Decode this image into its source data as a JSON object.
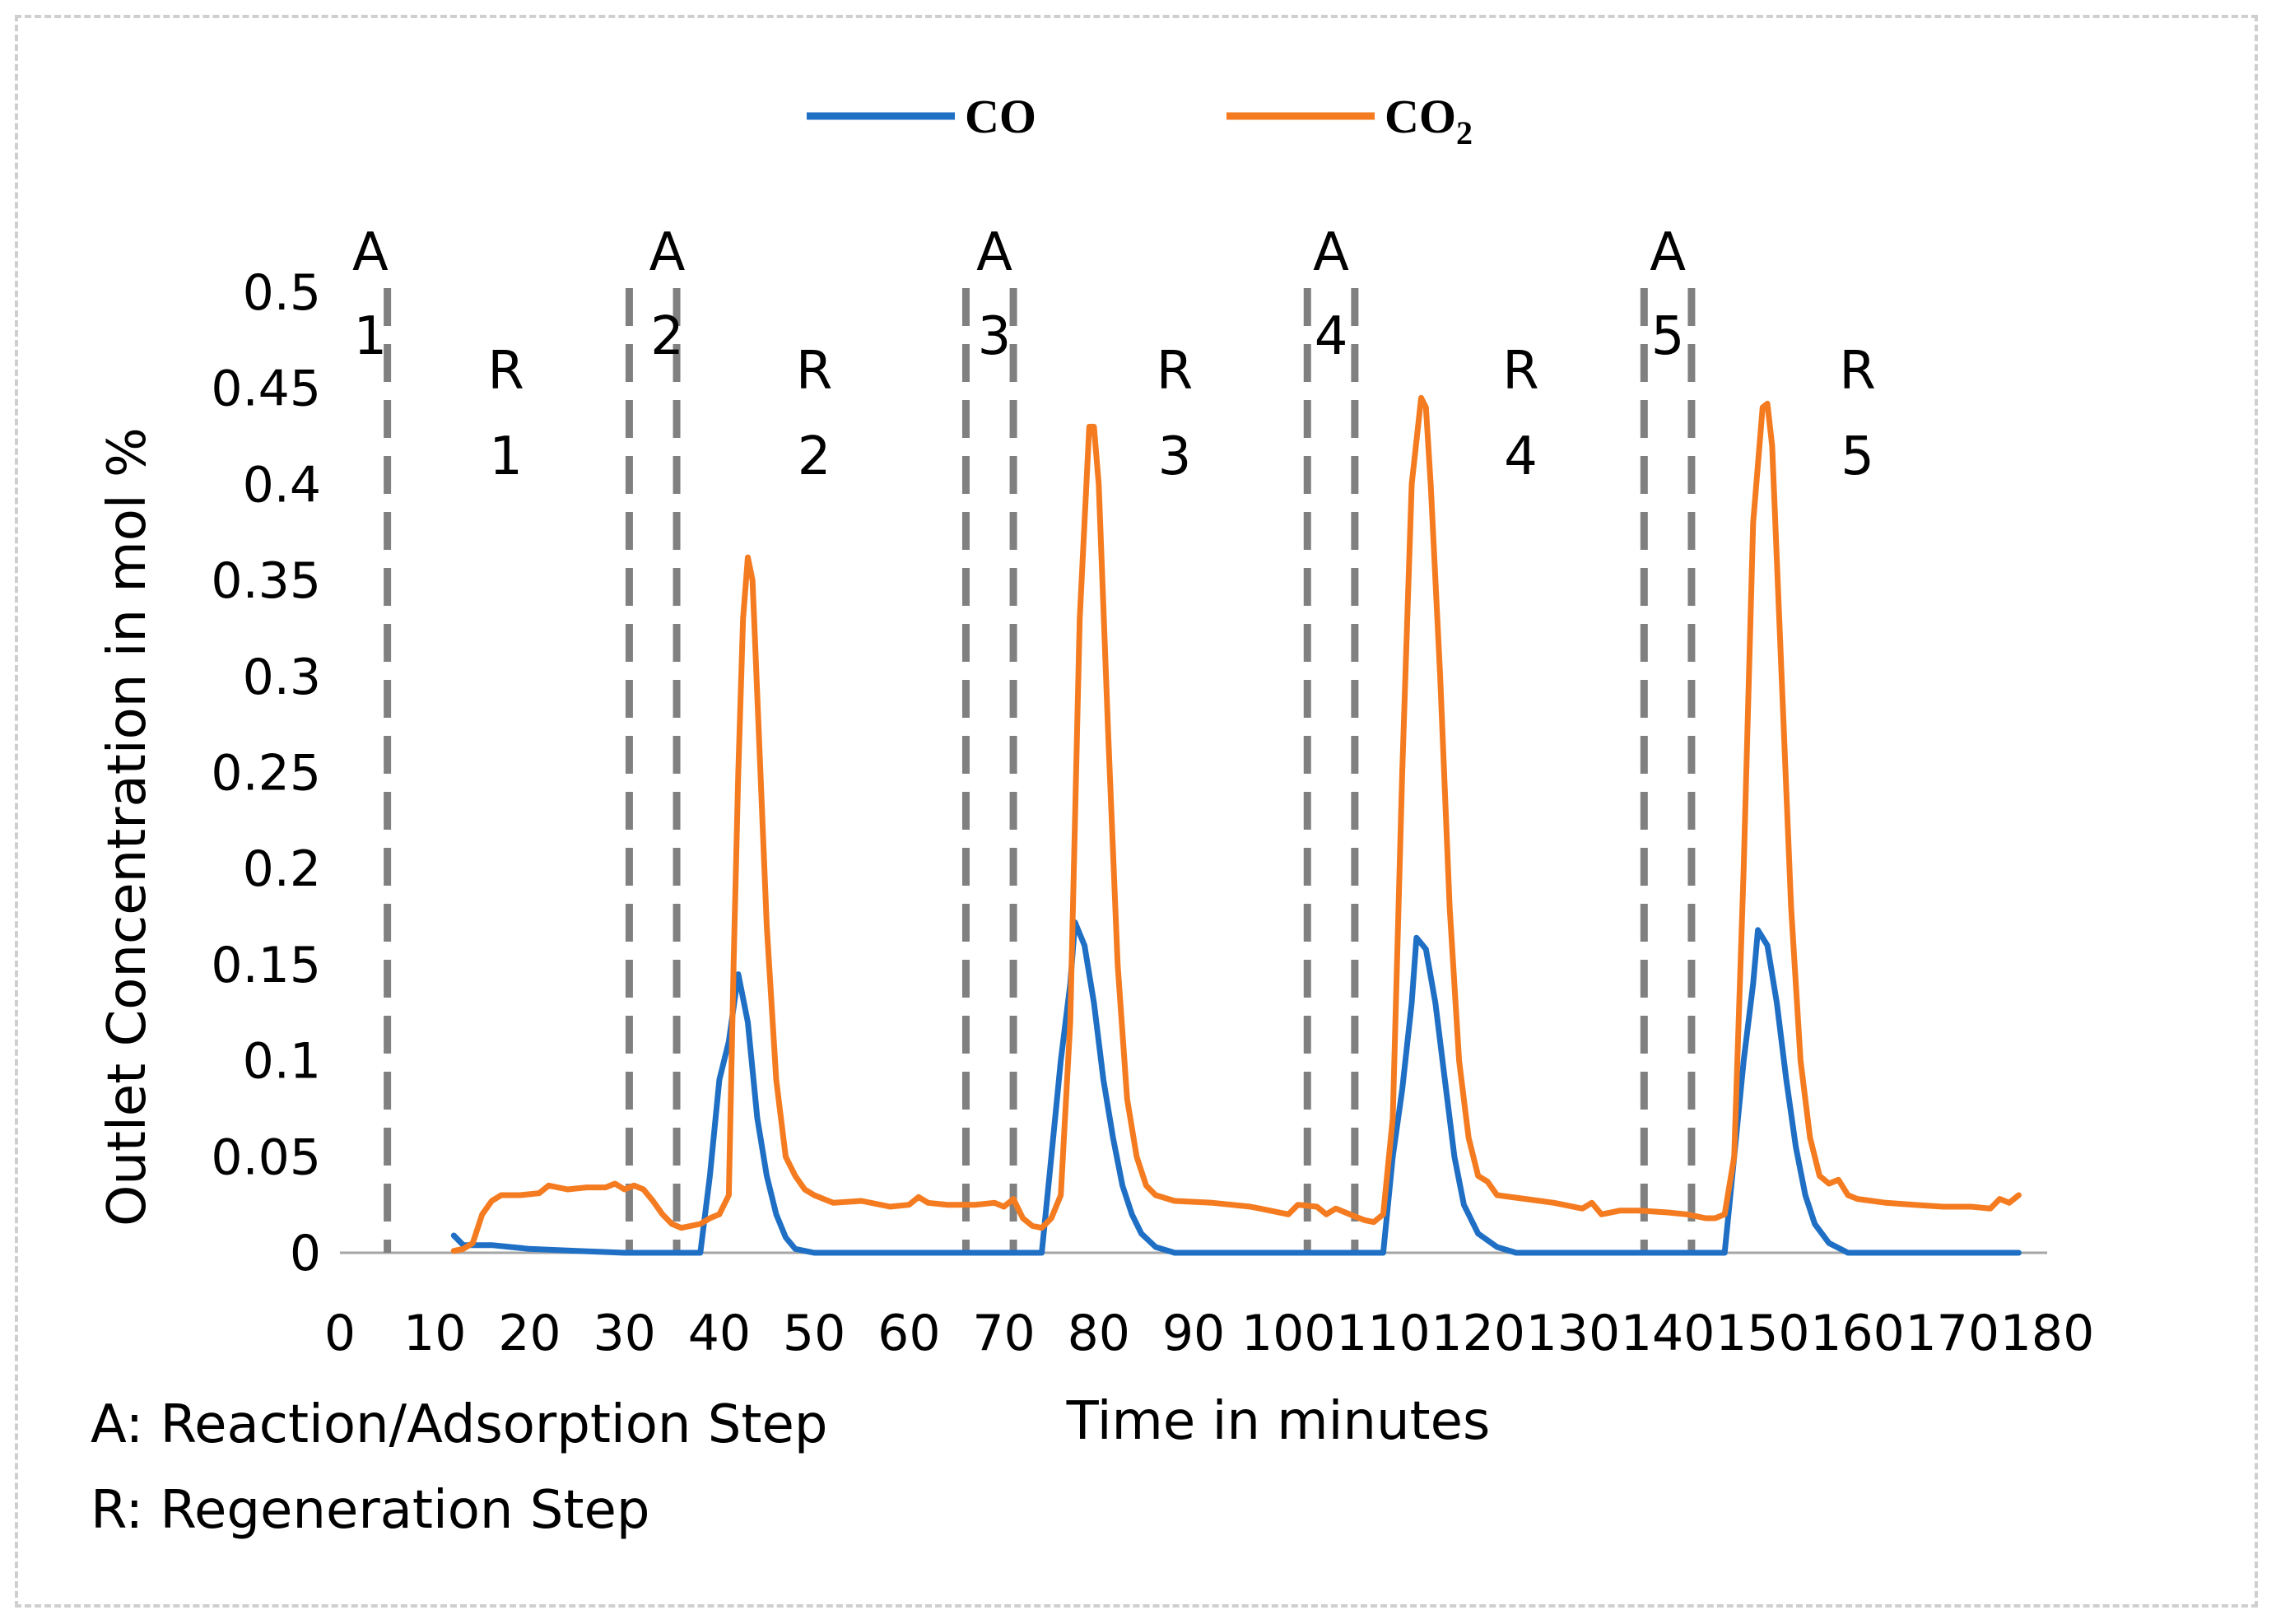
{
  "chart_data": {
    "type": "line",
    "title": "",
    "xlabel": "Time in minutes",
    "ylabel": "Outlet  Concentration in mol %",
    "xlim": [
      0,
      180
    ],
    "ylim": [
      0,
      0.5
    ],
    "x_ticks": [
      "0",
      "10",
      "20",
      "30",
      "40",
      "50",
      "60",
      "70",
      "80",
      "90",
      "100",
      "110",
      "120",
      "130",
      "140",
      "150",
      "160",
      "170",
      "180"
    ],
    "y_ticks": [
      "0",
      "0.05",
      "0.1",
      "0.15",
      "0.2",
      "0.25",
      "0.3",
      "0.35",
      "0.4",
      "0.45",
      "0.5"
    ],
    "legend": {
      "position": "top-center",
      "entries": [
        {
          "label": "CO",
          "subscript": "",
          "color": "#1f6fc5"
        },
        {
          "label": "CO",
          "subscript": "2",
          "color": "#f47b20"
        }
      ]
    },
    "series": [
      {
        "name": "CO",
        "color": "#1f6fc5",
        "points": [
          [
            12,
            0.009
          ],
          [
            13,
            0.004
          ],
          [
            14,
            0.004
          ],
          [
            16,
            0.004
          ],
          [
            18,
            0.003
          ],
          [
            20,
            0.002
          ],
          [
            25,
            0.001
          ],
          [
            30,
            0.0
          ],
          [
            37,
            0.0
          ],
          [
            38,
            0.0
          ],
          [
            39,
            0.04
          ],
          [
            40,
            0.09
          ],
          [
            41,
            0.11
          ],
          [
            42,
            0.145
          ],
          [
            43,
            0.12
          ],
          [
            44,
            0.07
          ],
          [
            45,
            0.04
          ],
          [
            46,
            0.02
          ],
          [
            47,
            0.008
          ],
          [
            48,
            0.002
          ],
          [
            50,
            0.0
          ],
          [
            73,
            0.0
          ],
          [
            74,
            0.0
          ],
          [
            75,
            0.05
          ],
          [
            76,
            0.1
          ],
          [
            77,
            0.14
          ],
          [
            77.5,
            0.172
          ],
          [
            78.5,
            0.16
          ],
          [
            79.5,
            0.13
          ],
          [
            80.5,
            0.09
          ],
          [
            81.5,
            0.06
          ],
          [
            82.5,
            0.035
          ],
          [
            83.5,
            0.02
          ],
          [
            84.5,
            0.01
          ],
          [
            86,
            0.003
          ],
          [
            88,
            0.0
          ],
          [
            109,
            0.0
          ],
          [
            110,
            0.0
          ],
          [
            111,
            0.05
          ],
          [
            112,
            0.085
          ],
          [
            113,
            0.13
          ],
          [
            113.5,
            0.164
          ],
          [
            114.5,
            0.158
          ],
          [
            115.5,
            0.13
          ],
          [
            116.5,
            0.09
          ],
          [
            117.5,
            0.05
          ],
          [
            118.5,
            0.025
          ],
          [
            120,
            0.01
          ],
          [
            122,
            0.003
          ],
          [
            124,
            0.0
          ],
          [
            145,
            0.0
          ],
          [
            146,
            0.0
          ],
          [
            147,
            0.05
          ],
          [
            148,
            0.1
          ],
          [
            149,
            0.14
          ],
          [
            149.5,
            0.168
          ],
          [
            150.5,
            0.16
          ],
          [
            151.5,
            0.13
          ],
          [
            152.5,
            0.09
          ],
          [
            153.5,
            0.055
          ],
          [
            154.5,
            0.03
          ],
          [
            155.5,
            0.015
          ],
          [
            157,
            0.005
          ],
          [
            159,
            0.0
          ],
          [
            177,
            0.0
          ]
        ]
      },
      {
        "name": "CO2",
        "color": "#f47b20",
        "points": [
          [
            12,
            0.001
          ],
          [
            13,
            0.002
          ],
          [
            14,
            0.005
          ],
          [
            15,
            0.02
          ],
          [
            16,
            0.027
          ],
          [
            17,
            0.03
          ],
          [
            19,
            0.03
          ],
          [
            21,
            0.031
          ],
          [
            22,
            0.035
          ],
          [
            24,
            0.033
          ],
          [
            26,
            0.034
          ],
          [
            28,
            0.034
          ],
          [
            29,
            0.036
          ],
          [
            30,
            0.033
          ],
          [
            31,
            0.035
          ],
          [
            32,
            0.033
          ],
          [
            33,
            0.027
          ],
          [
            34,
            0.02
          ],
          [
            35,
            0.015
          ],
          [
            36,
            0.013
          ],
          [
            38,
            0.015
          ],
          [
            39,
            0.018
          ],
          [
            40,
            0.02
          ],
          [
            41,
            0.03
          ],
          [
            41.5,
            0.15
          ],
          [
            42,
            0.25
          ],
          [
            42.5,
            0.33
          ],
          [
            43,
            0.362
          ],
          [
            43.5,
            0.35
          ],
          [
            44,
            0.29
          ],
          [
            45,
            0.17
          ],
          [
            46,
            0.09
          ],
          [
            47,
            0.05
          ],
          [
            48,
            0.04
          ],
          [
            49,
            0.033
          ],
          [
            50,
            0.03
          ],
          [
            52,
            0.026
          ],
          [
            55,
            0.027
          ],
          [
            58,
            0.024
          ],
          [
            60,
            0.025
          ],
          [
            61,
            0.029
          ],
          [
            62,
            0.026
          ],
          [
            64,
            0.025
          ],
          [
            67,
            0.025
          ],
          [
            69,
            0.026
          ],
          [
            70,
            0.024
          ],
          [
            71,
            0.028
          ],
          [
            72,
            0.018
          ],
          [
            73,
            0.014
          ],
          [
            74,
            0.013
          ],
          [
            75,
            0.018
          ],
          [
            76,
            0.03
          ],
          [
            77,
            0.12
          ],
          [
            78,
            0.33
          ],
          [
            79,
            0.43
          ],
          [
            79.5,
            0.43
          ],
          [
            80,
            0.4
          ],
          [
            81,
            0.27
          ],
          [
            82,
            0.15
          ],
          [
            83,
            0.08
          ],
          [
            84,
            0.05
          ],
          [
            85,
            0.035
          ],
          [
            86,
            0.03
          ],
          [
            88,
            0.027
          ],
          [
            92,
            0.026
          ],
          [
            96,
            0.024
          ],
          [
            100,
            0.02
          ],
          [
            101,
            0.025
          ],
          [
            103,
            0.024
          ],
          [
            104,
            0.02
          ],
          [
            105,
            0.023
          ],
          [
            106,
            0.021
          ],
          [
            107,
            0.019
          ],
          [
            108,
            0.017
          ],
          [
            109,
            0.016
          ],
          [
            110,
            0.02
          ],
          [
            111,
            0.07
          ],
          [
            112,
            0.25
          ],
          [
            113,
            0.4
          ],
          [
            114,
            0.445
          ],
          [
            114.5,
            0.44
          ],
          [
            115,
            0.4
          ],
          [
            116,
            0.3
          ],
          [
            117,
            0.18
          ],
          [
            118,
            0.1
          ],
          [
            119,
            0.06
          ],
          [
            120,
            0.04
          ],
          [
            121,
            0.037
          ],
          [
            122,
            0.03
          ],
          [
            125,
            0.028
          ],
          [
            128,
            0.026
          ],
          [
            131,
            0.023
          ],
          [
            132,
            0.026
          ],
          [
            133,
            0.02
          ],
          [
            135,
            0.022
          ],
          [
            137,
            0.022
          ],
          [
            140,
            0.021
          ],
          [
            142,
            0.02
          ],
          [
            144,
            0.018
          ],
          [
            145,
            0.018
          ],
          [
            146,
            0.02
          ],
          [
            147,
            0.05
          ],
          [
            148,
            0.2
          ],
          [
            149,
            0.38
          ],
          [
            150,
            0.44
          ],
          [
            150.5,
            0.442
          ],
          [
            151,
            0.42
          ],
          [
            152,
            0.3
          ],
          [
            153,
            0.18
          ],
          [
            154,
            0.1
          ],
          [
            155,
            0.06
          ],
          [
            156,
            0.04
          ],
          [
            157,
            0.036
          ],
          [
            158,
            0.038
          ],
          [
            159,
            0.03
          ],
          [
            160,
            0.028
          ],
          [
            163,
            0.026
          ],
          [
            166,
            0.025
          ],
          [
            169,
            0.024
          ],
          [
            172,
            0.024
          ],
          [
            174,
            0.023
          ],
          [
            175,
            0.028
          ],
          [
            176,
            0.026
          ],
          [
            177,
            0.03
          ]
        ]
      }
    ],
    "reference_lines": [
      {
        "x": 5,
        "style": "dashed"
      },
      {
        "x": 30.5,
        "style": "dashed"
      },
      {
        "x": 35.5,
        "style": "dashed"
      },
      {
        "x": 66,
        "style": "dashed"
      },
      {
        "x": 71,
        "style": "dashed"
      },
      {
        "x": 102,
        "style": "dashed"
      },
      {
        "x": 107,
        "style": "dashed"
      },
      {
        "x": 137.5,
        "style": "dashed"
      },
      {
        "x": 142.5,
        "style": "dashed"
      }
    ],
    "phase_labels": [
      {
        "letter": "A",
        "number": "1",
        "x": 3.2,
        "row": "top"
      },
      {
        "letter": "R",
        "number": "1",
        "x": 17.5,
        "row": "low"
      },
      {
        "letter": "A",
        "number": "2",
        "x": 34.5,
        "row": "top"
      },
      {
        "letter": "R",
        "number": "2",
        "x": 50,
        "row": "low"
      },
      {
        "letter": "A",
        "number": "3",
        "x": 69,
        "row": "top"
      },
      {
        "letter": "R",
        "number": "3",
        "x": 88,
        "row": "low"
      },
      {
        "letter": "A",
        "number": "4",
        "x": 104.5,
        "row": "top"
      },
      {
        "letter": "R",
        "number": "4",
        "x": 124.5,
        "row": "low"
      },
      {
        "letter": "A",
        "number": "5",
        "x": 140,
        "row": "top"
      },
      {
        "letter": "R",
        "number": "5",
        "x": 160,
        "row": "low"
      }
    ],
    "footnotes": [
      "A: Reaction/Adsorption Step",
      "R: Regeneration Step"
    ]
  }
}
